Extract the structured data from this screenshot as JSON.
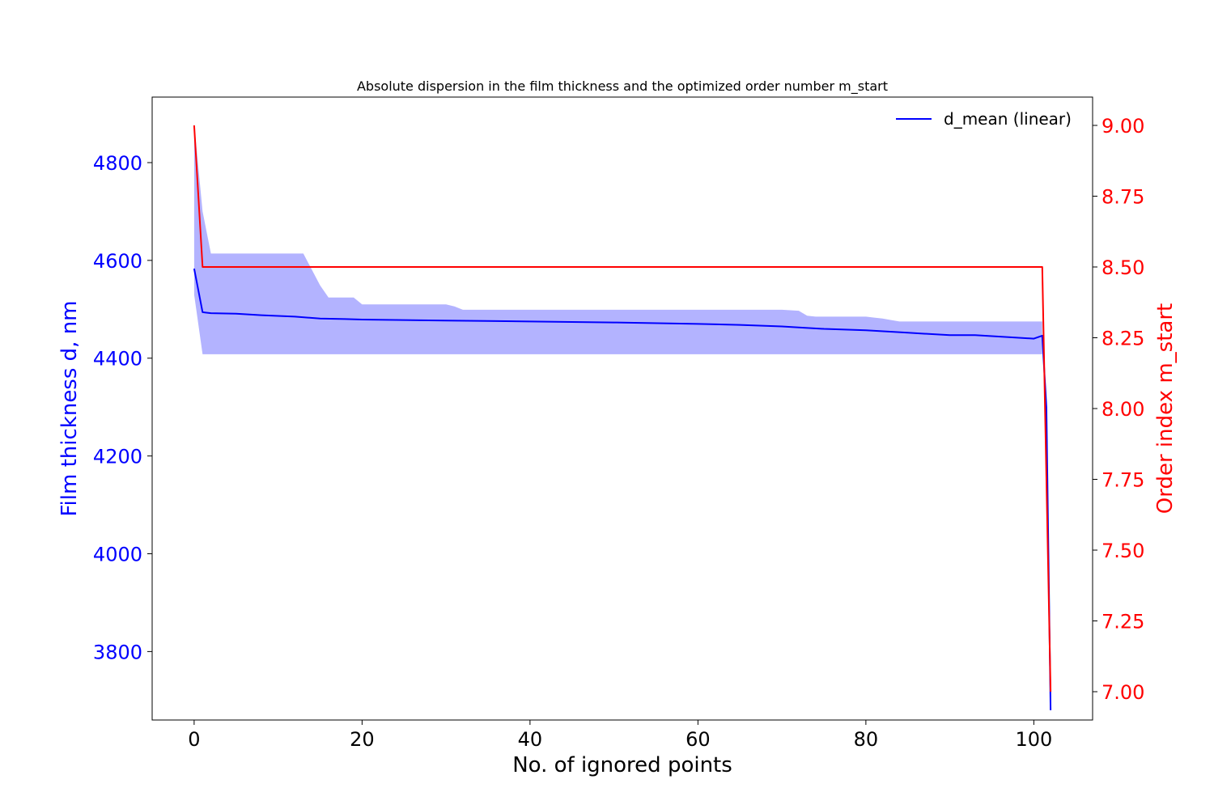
{
  "chart_data": {
    "type": "line",
    "title": "Absolute dispersion in the film thickness and the optimized order number m_start",
    "xlabel": "No. of ignored points",
    "ylabel_left": "Film thickness d, nm",
    "ylabel_right": "Order index m_start",
    "xlim": [
      -5,
      107
    ],
    "ylim_left": [
      3660,
      4934
    ],
    "ylim_right": [
      6.9,
      9.1
    ],
    "x_ticks": [
      0,
      20,
      40,
      60,
      80,
      100
    ],
    "y_ticks_left": [
      3800,
      4000,
      4200,
      4400,
      4600,
      4800
    ],
    "y_ticks_right": [
      7.0,
      7.25,
      7.5,
      7.75,
      8.0,
      8.25,
      8.5,
      8.75,
      9.0
    ],
    "y_ticks_right_labels": [
      "7.00",
      "7.25",
      "7.50",
      "7.75",
      "8.00",
      "8.25",
      "8.50",
      "8.75",
      "9.00"
    ],
    "legend": {
      "placement": "top-right",
      "entries": [
        "d_mean (linear)"
      ]
    },
    "grid": false,
    "colors": {
      "d_mean": "#0000ff",
      "band": "#b3b3ff",
      "m_start": "#ff0000"
    },
    "series": [
      {
        "name": "d_mean (linear)",
        "axis": "left",
        "x": [
          0,
          1,
          2,
          5,
          8,
          12,
          15,
          18,
          20,
          25,
          30,
          35,
          40,
          50,
          60,
          65,
          70,
          72,
          75,
          80,
          85,
          90,
          91,
          93,
          95,
          98,
          100,
          101,
          101.5,
          102
        ],
        "y": [
          4583,
          4494,
          4492,
          4491,
          4488,
          4485,
          4481,
          4480,
          4479,
          4478,
          4477,
          4476,
          4475,
          4473,
          4470,
          4468,
          4465,
          4463,
          4460,
          4457,
          4452,
          4447,
          4447,
          4447,
          4445,
          4442,
          4440,
          4446,
          4300,
          3680
        ]
      },
      {
        "axis": "left",
        "role": "band",
        "x": [
          0,
          1,
          2,
          13,
          15,
          16,
          19,
          20,
          30,
          31,
          32,
          70,
          72,
          73,
          74,
          80,
          81,
          82,
          83,
          84,
          101
        ],
        "upper": [
          4880,
          4700,
          4614,
          4614,
          4549,
          4524,
          4524,
          4510,
          4510,
          4506,
          4499,
          4499,
          4497,
          4487,
          4485,
          4485,
          4483,
          4481,
          4478,
          4475,
          4475
        ],
        "lower": [
          4530,
          4408,
          4408,
          4408,
          4408,
          4408,
          4408,
          4408,
          4408,
          4408,
          4408,
          4408,
          4408,
          4408,
          4408,
          4408,
          4408,
          4408,
          4408,
          4408,
          4408
        ]
      },
      {
        "axis": "right",
        "x": [
          0,
          1,
          101,
          102
        ],
        "y": [
          9.0,
          8.5,
          8.5,
          7.0
        ]
      }
    ]
  }
}
